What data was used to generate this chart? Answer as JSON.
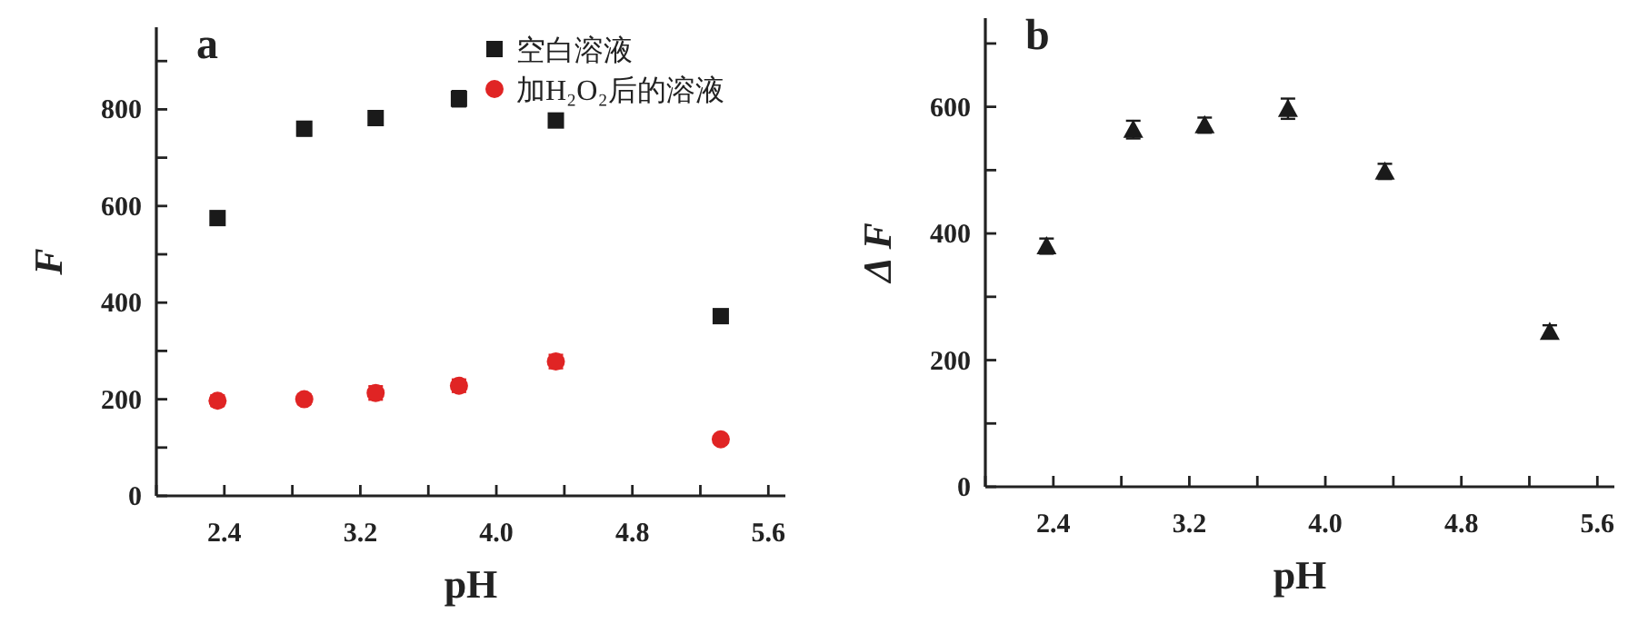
{
  "chart_data": [
    {
      "type": "scatter",
      "title": "a",
      "xlabel": "pH",
      "ylabel": "F",
      "x": [
        2.36,
        2.87,
        3.29,
        3.78,
        4.35,
        5.32
      ],
      "xlim": [
        2.0,
        5.7
      ],
      "ylim": [
        0,
        970
      ],
      "xticks": [
        {
          "value": 2.0,
          "label": null
        },
        2.4,
        {
          "value": 2.8,
          "label": null
        },
        3.2,
        {
          "value": 3.6,
          "label": null
        },
        {
          "value": 4.0,
          "label": "4.0"
        },
        {
          "value": 4.4,
          "label": null
        },
        4.8,
        {
          "value": 5.2,
          "label": null
        },
        5.6
      ],
      "yticks": [
        0,
        {
          "value": 100,
          "label": null
        },
        200,
        {
          "value": 300,
          "label": null
        },
        400,
        {
          "value": 500,
          "label": null
        },
        600,
        {
          "value": 700,
          "label": null
        },
        800,
        {
          "value": 900,
          "label": null
        }
      ],
      "legend": "top right",
      "grid": false,
      "series": [
        {
          "name": "空白溶液",
          "color": "#1a1a1a",
          "marker": "square",
          "values": [
            575,
            760,
            782,
            822,
            777,
            372
          ],
          "errors": [
            12,
            14,
            13,
            16,
            12,
            6
          ]
        },
        {
          "name": "加H₂O₂后的溶液",
          "color": "#e02424",
          "marker": "circle",
          "values": [
            197,
            200,
            213,
            228,
            278,
            117
          ],
          "errors": [
            11,
            10,
            14,
            13,
            14,
            5
          ]
        }
      ]
    },
    {
      "type": "scatter",
      "title": "b",
      "xlabel": "pH",
      "ylabel": "Δ F",
      "x": [
        2.36,
        2.87,
        3.29,
        3.78,
        4.35,
        5.32
      ],
      "xlim": [
        2.0,
        5.7
      ],
      "ylim": [
        0,
        740
      ],
      "xticks": [
        {
          "value": 2.0,
          "label": null
        },
        2.4,
        {
          "value": 2.8,
          "label": null
        },
        3.2,
        {
          "value": 3.6,
          "label": null
        },
        {
          "value": 4.0,
          "label": "4.0"
        },
        {
          "value": 4.4,
          "label": null
        },
        4.8,
        {
          "value": 5.2,
          "label": null
        },
        5.6
      ],
      "yticks": [
        0,
        {
          "value": 100,
          "label": null
        },
        200,
        {
          "value": 300,
          "label": null
        },
        400,
        {
          "value": 500,
          "label": null
        },
        600,
        {
          "value": 700,
          "label": null
        }
      ],
      "grid": false,
      "series": [
        {
          "color": "#1a1a1a",
          "marker": "triangle",
          "values": [
            380,
            564,
            571,
            597,
            498,
            245
          ],
          "errors": [
            12,
            14,
            12,
            16,
            12,
            10
          ]
        }
      ]
    }
  ]
}
